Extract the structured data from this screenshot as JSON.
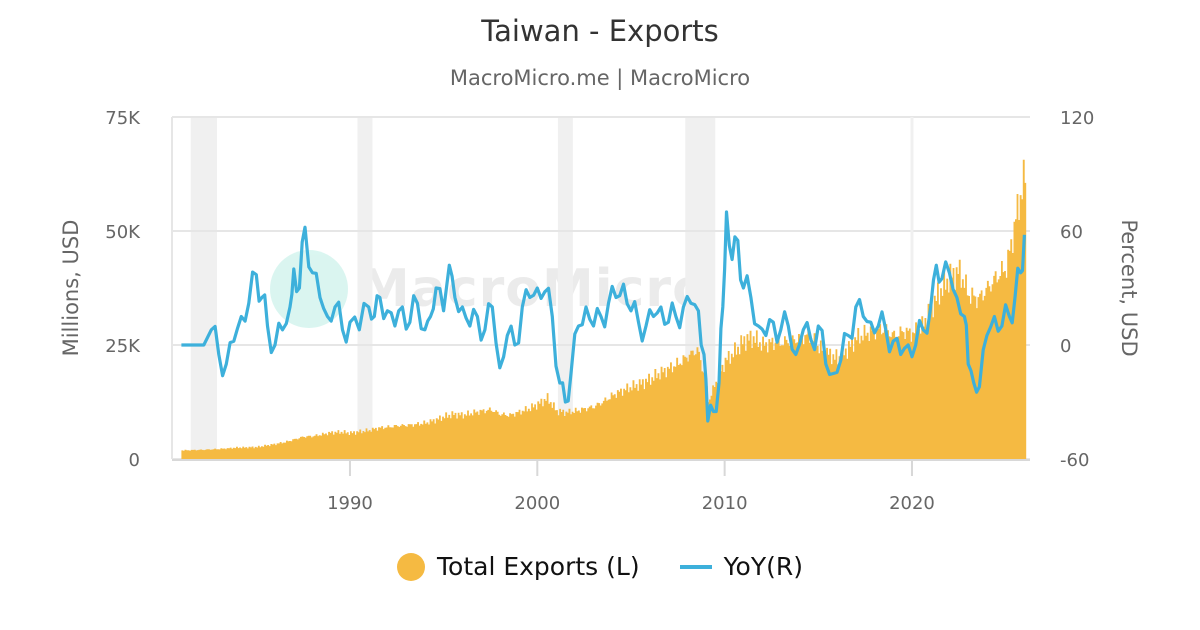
{
  "header": {
    "title": "Taiwan - Exports",
    "subtitle": "MacroMicro.me | MacroMicro"
  },
  "watermark": {
    "text": "MacroMicro"
  },
  "axes": {
    "left": {
      "title": "Millions, USD",
      "ticks": [
        "0",
        "25K",
        "50K",
        "75K"
      ]
    },
    "right": {
      "title": "Percent, USD",
      "ticks": [
        "-60",
        "0",
        "60",
        "120"
      ]
    },
    "x": {
      "ticks": [
        "1990",
        "2000",
        "2010",
        "2020"
      ]
    }
  },
  "legend": {
    "items": [
      {
        "label": "Total Exports (L)",
        "color": "#F5BA42",
        "shape": "circle"
      },
      {
        "label": "YoY(R)",
        "color": "#3DB0DB",
        "shape": "line"
      }
    ]
  },
  "colors": {
    "exports": "#F5BA42",
    "yoy": "#3DB0DB",
    "grid": "#e6e6e6",
    "recession": "#f0f0f0"
  },
  "chart_data": {
    "type": "bar+line",
    "title": "Taiwan - Exports",
    "subtitle": "MacroMicro.me | MacroMicro",
    "xlabel": "",
    "ylabel_left": "Millions, USD",
    "ylabel_right": "Percent, USD",
    "ylim_left": [
      0,
      75000
    ],
    "ylim_right": [
      -60,
      120
    ],
    "xlim": [
      1980.5,
      2026.3
    ],
    "x_ticks": [
      1990,
      2000,
      2010,
      2020
    ],
    "grid": true,
    "legend_position": "bottom",
    "recession_bands": [
      [
        1981.5,
        1982.9
      ],
      [
        1990.4,
        1991.2
      ],
      [
        2001.1,
        2001.9
      ],
      [
        2007.9,
        2009.5
      ]
    ],
    "series": [
      {
        "name": "Total Exports (L)",
        "type": "bar",
        "axis": "left",
        "x": [
          1981.0,
          1982.0,
          1983.0,
          1984.0,
          1985.0,
          1986.0,
          1986.5,
          1987.0,
          1987.5,
          1988.0,
          1988.5,
          1989.0,
          1989.5,
          1990.0,
          1990.5,
          1991.0,
          1991.5,
          1992.0,
          1992.5,
          1993.0,
          1993.5,
          1994.0,
          1994.5,
          1995.0,
          1995.5,
          1996.0,
          1996.5,
          1997.0,
          1997.5,
          1998.0,
          1998.5,
          1999.0,
          1999.5,
          2000.0,
          2000.5,
          2001.0,
          2001.5,
          2002.0,
          2002.5,
          2003.0,
          2003.5,
          2004.0,
          2004.5,
          2005.0,
          2005.5,
          2006.0,
          2006.5,
          2007.0,
          2007.5,
          2008.0,
          2008.5,
          2008.9,
          2009.1,
          2009.5,
          2010.0,
          2010.5,
          2011.0,
          2011.5,
          2012.0,
          2012.5,
          2013.0,
          2013.5,
          2014.0,
          2014.5,
          2015.0,
          2015.5,
          2016.0,
          2016.5,
          2017.0,
          2017.5,
          2018.0,
          2018.5,
          2019.0,
          2019.5,
          2020.0,
          2020.5,
          2021.0,
          2021.5,
          2022.0,
          2022.5,
          2023.0,
          2023.5,
          2024.0,
          2024.5,
          2025.0,
          2025.3,
          2025.6,
          2025.9,
          2026.0
        ],
        "values": [
          1900,
          2000,
          2200,
          2500,
          2600,
          3300,
          3700,
          4300,
          4900,
          5000,
          5400,
          5800,
          5900,
          5700,
          6000,
          6300,
          6800,
          7000,
          7300,
          7400,
          7600,
          7900,
          8500,
          9300,
          9800,
          9600,
          10100,
          10500,
          10800,
          9800,
          9600,
          10300,
          11000,
          12000,
          13300,
          10500,
          10200,
          10500,
          11000,
          11500,
          12600,
          14000,
          15000,
          15800,
          16500,
          17500,
          18800,
          19800,
          21000,
          22500,
          24000,
          18000,
          12500,
          17000,
          21500,
          23500,
          26000,
          26500,
          25000,
          25500,
          25500,
          26000,
          26500,
          27000,
          24500,
          23000,
          22000,
          24000,
          26500,
          27500,
          28000,
          28500,
          27000,
          28000,
          27500,
          29000,
          33500,
          37000,
          40000,
          41000,
          36000,
          35000,
          37500,
          40000,
          42000,
          48000,
          55000,
          60000,
          63000
        ]
      },
      {
        "name": "YoY(R)",
        "type": "line",
        "axis": "right",
        "x": [
          1981.0,
          1981.9,
          1982.2,
          1982.6,
          1983.0,
          1983.4,
          1983.8,
          1984.2,
          1984.6,
          1985.0,
          1985.3,
          1985.6,
          1986.0,
          1986.4,
          1986.8,
          1987.0,
          1987.3,
          1987.6,
          1988.0,
          1988.4,
          1988.8,
          1989.2,
          1989.6,
          1990.0,
          1990.5,
          1991.0,
          1991.3,
          1991.6,
          1992.0,
          1992.4,
          1992.8,
          1993.2,
          1993.6,
          1994.0,
          1994.3,
          1994.6,
          1995.0,
          1995.3,
          1995.6,
          1996.0,
          1996.4,
          1996.8,
          1997.2,
          1997.6,
          1998.0,
          1998.4,
          1998.8,
          1999.2,
          1999.6,
          2000.0,
          2000.4,
          2000.8,
          2001.2,
          2001.5,
          2001.8,
          2002.2,
          2002.6,
          2003.0,
          2003.4,
          2003.8,
          2004.2,
          2004.6,
          2005.0,
          2005.4,
          2005.8,
          2006.2,
          2006.6,
          2007.0,
          2007.4,
          2007.8,
          2008.2,
          2008.6,
          2008.9,
          2009.1,
          2009.4,
          2009.7,
          2009.9,
          2010.1,
          2010.4,
          2010.7,
          2011.0,
          2011.4,
          2011.8,
          2012.2,
          2012.6,
          2013.0,
          2013.4,
          2013.8,
          2014.2,
          2014.6,
          2015.0,
          2015.4,
          2015.8,
          2016.2,
          2016.6,
          2017.0,
          2017.4,
          2017.8,
          2018.2,
          2018.6,
          2019.0,
          2019.4,
          2019.8,
          2020.2,
          2020.6,
          2021.0,
          2021.3,
          2021.6,
          2022.0,
          2022.4,
          2022.8,
          2023.0,
          2023.3,
          2023.6,
          2024.0,
          2024.4,
          2024.8,
          2025.2,
          2025.5,
          2025.8,
          2026.0
        ],
        "values": [
          0,
          0,
          0,
          8,
          -5,
          -10,
          2,
          15,
          22,
          37,
          25,
          10,
          0,
          8,
          20,
          40,
          30,
          62,
          38,
          25,
          15,
          20,
          8,
          12,
          8,
          20,
          15,
          25,
          18,
          10,
          20,
          12,
          22,
          8,
          15,
          30,
          18,
          42,
          25,
          20,
          10,
          15,
          8,
          20,
          -12,
          5,
          0,
          20,
          25,
          30,
          28,
          15,
          -20,
          -30,
          -15,
          10,
          20,
          10,
          15,
          22,
          25,
          32,
          18,
          12,
          10,
          15,
          20,
          12,
          15,
          20,
          22,
          18,
          -5,
          -40,
          -35,
          -20,
          20,
          70,
          45,
          55,
          30,
          25,
          10,
          5,
          12,
          8,
          10,
          -5,
          8,
          3,
          10,
          -10,
          -15,
          -8,
          5,
          20,
          15,
          12,
          10,
          8,
          2,
          -5,
          0,
          0,
          8,
          20,
          42,
          35,
          38,
          25,
          15,
          -10,
          -20,
          -22,
          5,
          15,
          10,
          15,
          25,
          38,
          58
        ]
      }
    ]
  }
}
